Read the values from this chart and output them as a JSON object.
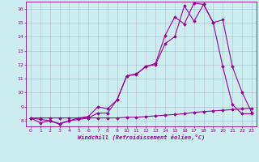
{
  "xlabel": "Windchill (Refroidissement éolien,°C)",
  "background_color": "#cceef0",
  "grid_color": "#9999bb",
  "line_color": "#990099",
  "x_min": 0,
  "x_max": 23,
  "y_min": 8,
  "y_max": 16,
  "line1_x": [
    0,
    1,
    2,
    3,
    4,
    5,
    6,
    7,
    8,
    9,
    10,
    11,
    12,
    13,
    14,
    15,
    16,
    17,
    18,
    19,
    20,
    21,
    22,
    23
  ],
  "line1_y": [
    8.2,
    7.85,
    8.0,
    7.75,
    8.0,
    8.1,
    8.2,
    8.55,
    8.55,
    9.5,
    11.2,
    11.35,
    11.85,
    12.1,
    14.1,
    15.4,
    14.9,
    16.4,
    16.3,
    15.0,
    15.2,
    11.85,
    10.05,
    8.6
  ],
  "line2_x": [
    0,
    1,
    2,
    3,
    4,
    5,
    6,
    7,
    8,
    9,
    10,
    11,
    12,
    13,
    14,
    15,
    16,
    17,
    18,
    19,
    20,
    21,
    22,
    23
  ],
  "line2_y": [
    8.2,
    8.2,
    8.2,
    8.2,
    8.2,
    8.2,
    8.2,
    8.2,
    8.2,
    8.2,
    8.25,
    8.25,
    8.3,
    8.35,
    8.4,
    8.45,
    8.5,
    8.6,
    8.65,
    8.7,
    8.75,
    8.8,
    8.85,
    8.9
  ],
  "line3_x": [
    0,
    1,
    2,
    3,
    4,
    5,
    6,
    7,
    8,
    9,
    10,
    11,
    12,
    13,
    14,
    15,
    16,
    17,
    18,
    19,
    20,
    21,
    22,
    23
  ],
  "line3_y": [
    8.2,
    8.1,
    8.0,
    7.8,
    8.0,
    8.2,
    8.3,
    9.0,
    8.85,
    9.5,
    11.2,
    11.3,
    11.9,
    12.0,
    13.5,
    14.0,
    16.2,
    15.1,
    16.3,
    15.0,
    11.85,
    9.15,
    8.5,
    8.5
  ]
}
